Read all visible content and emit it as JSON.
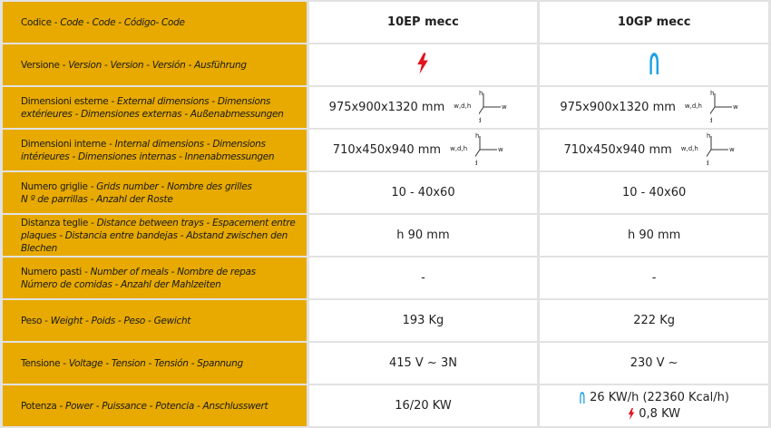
{
  "columns": [
    "10EP mecc",
    "10GP mecc"
  ],
  "icons": {
    "electric": "lightning-bolt-icon",
    "gas": "gas-flame-icon",
    "electric_color": "#e0141e",
    "gas_color": "#1ea0e6",
    "label_bg": "#e8aa00"
  },
  "axes_label": {
    "wdh": "w,d,h",
    "h": "h",
    "w": "w",
    "d": "d"
  },
  "rows": [
    {
      "label_main": "Codice - ",
      "label_italic": "Code - Code - Código- Code",
      "label_main2": "",
      "label_italic2": ""
    },
    {
      "label_main": "Versione - ",
      "label_italic": "Version - Version - Versión - Ausführung"
    },
    {
      "label_main": "Dimensioni esterne - ",
      "label_italic": "External dimensions - Dimensions",
      "label_italic2": "extérieures - Dimensiones externas - Außenabmessungen",
      "values": [
        "975x900x1320 mm",
        "975x900x1320 mm"
      ]
    },
    {
      "label_main": "Dimensioni interne - ",
      "label_italic": "Internal dimensions - Dimensions",
      "label_italic2": "intérieures - Dimensiones internas - Innenabmessungen",
      "values": [
        "710x450x940 mm",
        "710x450x940 mm"
      ]
    },
    {
      "label_main": "Numero griglie - ",
      "label_italic": "Grids number - Nombre des grilles",
      "label_italic2": "N º de parrillas - Anzahl der Roste",
      "values": [
        "10 - 40x60",
        "10 - 40x60"
      ]
    },
    {
      "label_main": "Distanza teglie - ",
      "label_italic": "Distance between trays - Espacement entre",
      "label_italic2": "plaques - Distancia entre bandejas - Abstand zwischen den Blechen",
      "values": [
        "h 90 mm",
        "h 90 mm"
      ]
    },
    {
      "label_main": "Numero pasti - ",
      "label_italic": "Number of meals - Nombre de repas",
      "label_italic2": "Número de comidas - Anzahl der Mahlzeiten",
      "values": [
        "-",
        "-"
      ]
    },
    {
      "label_main": "Peso - ",
      "label_italic": "Weight - Poids - Peso - Gewicht",
      "values": [
        "193 Kg",
        "222 Kg"
      ]
    },
    {
      "label_main": "Tensione - ",
      "label_italic": "Voltage - Tension - Tensión - Spannung",
      "values": [
        "415 V ~ 3N",
        "230 V ~"
      ]
    },
    {
      "label_main": "Potenza - ",
      "label_italic": "Power - Puissance - Potencia - Anschlusswert",
      "values": [
        "16/20 KW"
      ],
      "gas_power": "26 KW/h (22360 Kcal/h)",
      "electric_power": "0,8 KW"
    }
  ]
}
